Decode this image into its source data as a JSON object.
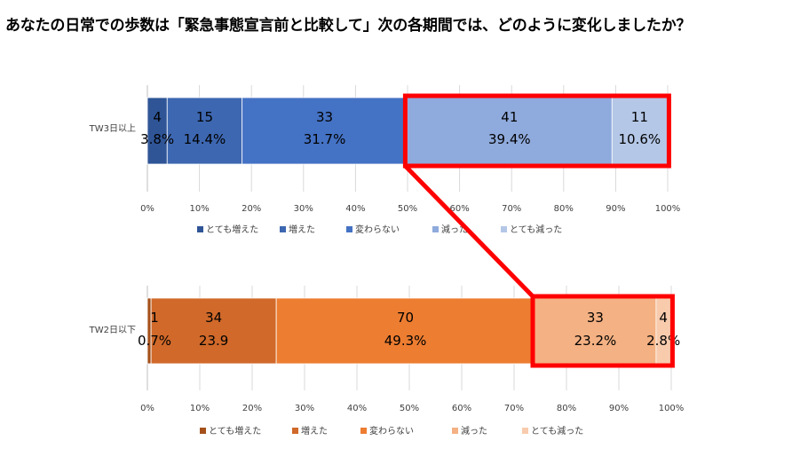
{
  "title": "あなたの日常での歩数は「緊急事態宣言前と比較して」次の各期間では、どのように変化しましたか？",
  "chart_data": [
    {
      "type": "bar",
      "orientation": "horizontal",
      "stacked": true,
      "normalized_100": true,
      "category": "TW3日以上",
      "xlim": [
        0,
        100
      ],
      "x_ticks": [
        "0%",
        "10%",
        "20%",
        "30%",
        "40%",
        "50%",
        "60%",
        "70%",
        "80%",
        "90%",
        "100%"
      ],
      "grid": true,
      "legend_position": "bottom",
      "series": [
        {
          "name": "とても増えた",
          "count": "4",
          "percent": "3.8%",
          "value": 3.8,
          "color": "#2f5597"
        },
        {
          "name": "増えた",
          "count": "15",
          "percent": "14.4%",
          "value": 14.4,
          "color": "#3d67b1"
        },
        {
          "name": "変わらない",
          "count": "33",
          "percent": "31.7%",
          "value": 31.7,
          "color": "#4472c4"
        },
        {
          "name": "減った",
          "count": "41",
          "percent": "39.4%",
          "value": 39.4,
          "color": "#8faadc"
        },
        {
          "name": "とても減った",
          "count": "11",
          "percent": "10.6%",
          "value": 10.6,
          "color": "#b4c7e7"
        }
      ],
      "highlight_series": [
        3,
        4
      ]
    },
    {
      "type": "bar",
      "orientation": "horizontal",
      "stacked": true,
      "normalized_100": true,
      "category": "TW2日以下",
      "xlim": [
        0,
        100
      ],
      "x_ticks": [
        "0%",
        "10%",
        "20%",
        "30%",
        "40%",
        "50%",
        "60%",
        "70%",
        "80%",
        "90%",
        "100%"
      ],
      "grid": true,
      "legend_position": "bottom",
      "series": [
        {
          "name": "とても増えた",
          "count": "1",
          "percent": "0.7%",
          "value": 0.7,
          "color": "#a5501a"
        },
        {
          "name": "増えた",
          "count": "34",
          "percent": "23.9",
          "value": 23.9,
          "color": "#d0692a"
        },
        {
          "name": "変わらない",
          "count": "70",
          "percent": "49.3%",
          "value": 49.3,
          "color": "#ed7d31"
        },
        {
          "name": "減った",
          "count": "33",
          "percent": "23.2%",
          "value": 23.2,
          "color": "#f4b183"
        },
        {
          "name": "とても減った",
          "count": "4",
          "percent": "2.8%",
          "value": 2.8,
          "color": "#f8cbad"
        }
      ],
      "highlight_series": [
        3,
        4
      ]
    }
  ],
  "highlight_color": "#ff0000"
}
